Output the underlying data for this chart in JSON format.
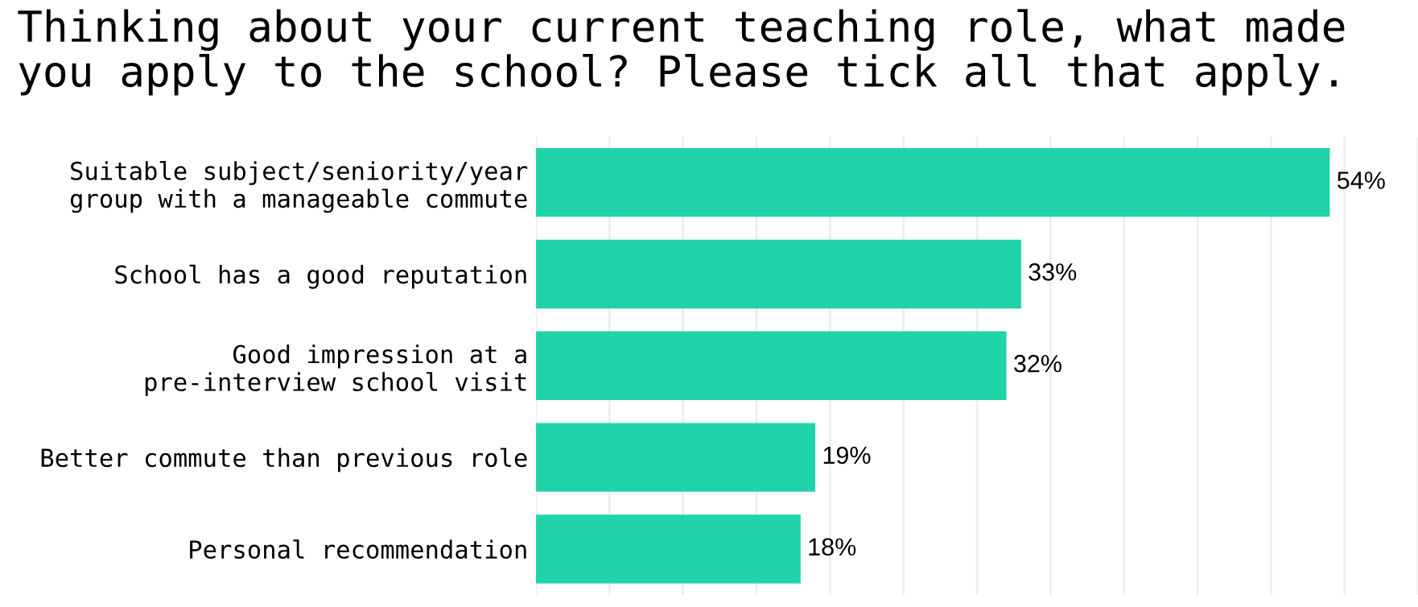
{
  "chart_data": {
    "type": "bar",
    "orientation": "horizontal",
    "title": "Thinking about your current teaching role, what made\nyou apply to the school? Please tick all that apply.",
    "categories": [
      "Suitable subject/seniority/year\ngroup with a manageable commute",
      "School has a good reputation",
      "Good impression at a\npre-interview school visit",
      "Better commute than previous role",
      "Personal recommendation"
    ],
    "values": [
      54,
      33,
      32,
      19,
      18
    ],
    "value_labels": [
      "54%",
      "33%",
      "32%",
      "19%",
      "18%"
    ],
    "color": "#20d3a8",
    "xlim": [
      0,
      60
    ],
    "xticks": [
      {
        "value": 0,
        "label": null
      },
      {
        "value": 5,
        "label": null
      },
      {
        "value": 10,
        "label": null
      },
      {
        "value": 15,
        "label": null
      },
      {
        "value": 20,
        "label": null
      },
      {
        "value": 25,
        "label": null
      },
      {
        "value": 30,
        "label": null
      },
      {
        "value": 35,
        "label": null
      },
      {
        "value": 40,
        "label": null
      },
      {
        "value": 45,
        "label": null
      },
      {
        "value": 50,
        "label": null
      },
      {
        "value": 55,
        "label": null
      },
      {
        "value": 60,
        "label": null
      }
    ],
    "grid": "x",
    "tick_labels": "y"
  }
}
